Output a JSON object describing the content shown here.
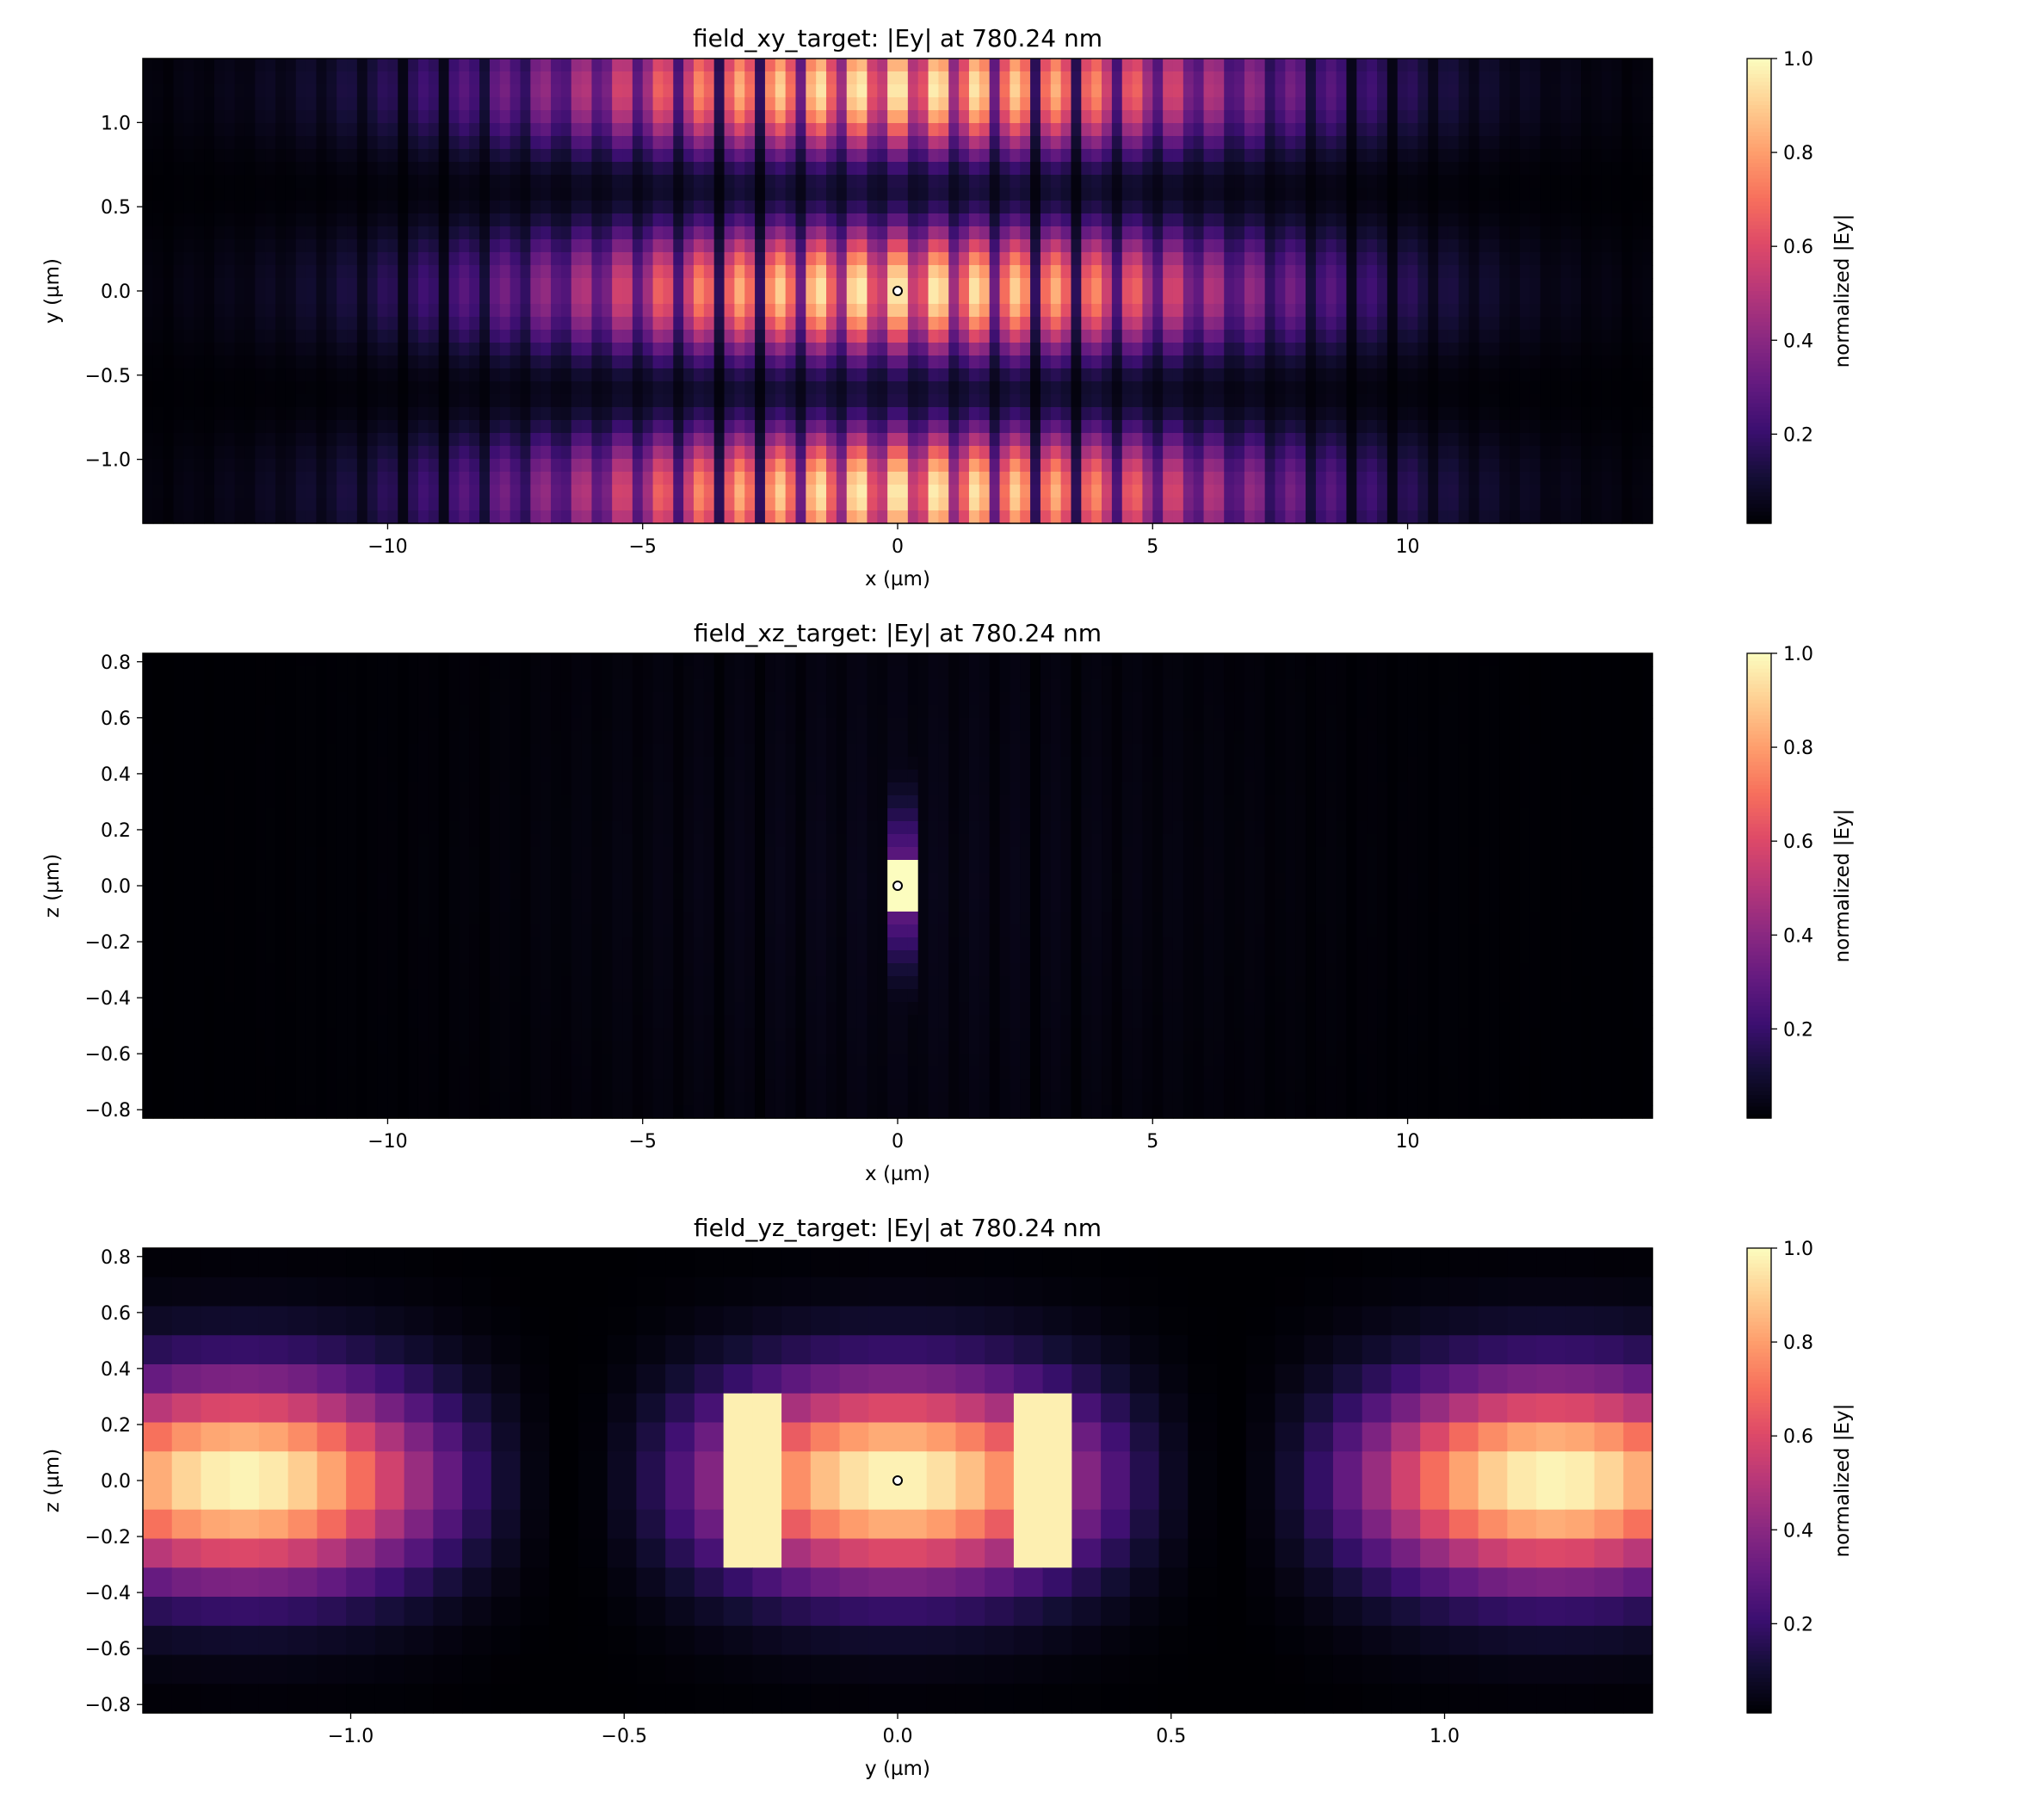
{
  "chart_data": [
    {
      "type": "heatmap",
      "title": "field_xy_target: |Ey| at 780.24 nm",
      "xlabel": "x (µm)",
      "ylabel": "y (µm)",
      "xlim": [
        -14.8,
        14.8
      ],
      "ylim": [
        -1.38,
        1.38
      ],
      "xticks": [
        -10,
        -5,
        0,
        5,
        10
      ],
      "xtick_labels": [
        "−10",
        "−5",
        "0",
        "5",
        "10"
      ],
      "yticks": [
        -1.0,
        -0.5,
        0.0,
        0.5,
        1.0
      ],
      "ytick_labels": [
        "−1.0",
        "−0.5",
        "0.0",
        "0.5",
        "1.0"
      ],
      "colorbar_label": "normalized |Ey|",
      "colorbar_range": [
        0.01,
        1.0
      ],
      "colorbar_ticks": [
        0.2,
        0.4,
        0.6,
        0.8,
        1.0
      ],
      "colorbar_tick_labels": [
        "0.2",
        "0.4",
        "0.6",
        "0.8",
        "1.0"
      ],
      "colormap": "magma",
      "marker": {
        "x": 0,
        "y": 0
      },
      "grid": false
    },
    {
      "type": "heatmap",
      "title": "field_xz_target: |Ey| at 780.24 nm",
      "xlabel": "x (µm)",
      "ylabel": "z (µm)",
      "xlim": [
        -14.8,
        14.8
      ],
      "ylim": [
        -0.83,
        0.83
      ],
      "xticks": [
        -10,
        -5,
        0,
        5,
        10
      ],
      "xtick_labels": [
        "−10",
        "−5",
        "0",
        "5",
        "10"
      ],
      "yticks": [
        -0.8,
        -0.6,
        -0.4,
        -0.2,
        0.0,
        0.2,
        0.4,
        0.6,
        0.8
      ],
      "ytick_labels": [
        "−0.8",
        "−0.6",
        "−0.4",
        "−0.2",
        "0.0",
        "0.2",
        "0.4",
        "0.6",
        "0.8"
      ],
      "colorbar_label": "normalized |Ey|",
      "colorbar_range": [
        0.01,
        1.0
      ],
      "colorbar_ticks": [
        0.2,
        0.4,
        0.6,
        0.8,
        1.0
      ],
      "colorbar_tick_labels": [
        "0.2",
        "0.4",
        "0.6",
        "0.8",
        "1.0"
      ],
      "colormap": "magma",
      "marker": {
        "x": 0,
        "y": 0
      },
      "grid": false
    },
    {
      "type": "heatmap",
      "title": "field_yz_target: |Ey| at 780.24 nm",
      "xlabel": "y (µm)",
      "ylabel": "z (µm)",
      "xlim": [
        -1.38,
        1.38
      ],
      "ylim": [
        -0.83,
        0.83
      ],
      "xticks": [
        -1.0,
        -0.5,
        0.0,
        0.5,
        1.0
      ],
      "xtick_labels": [
        "−1.0",
        "−0.5",
        "0.0",
        "0.5",
        "1.0"
      ],
      "yticks": [
        -0.8,
        -0.6,
        -0.4,
        -0.2,
        0.0,
        0.2,
        0.4,
        0.6,
        0.8
      ],
      "ytick_labels": [
        "−0.8",
        "−0.6",
        "−0.4",
        "−0.2",
        "0.0",
        "0.2",
        "0.4",
        "0.6",
        "0.8"
      ],
      "colorbar_label": "normalized |Ey|",
      "colorbar_range": [
        0.01,
        1.0
      ],
      "colorbar_ticks": [
        0.2,
        0.4,
        0.6,
        0.8,
        1.0
      ],
      "colorbar_tick_labels": [
        "0.2",
        "0.4",
        "0.6",
        "0.8",
        "1.0"
      ],
      "colormap": "magma",
      "marker": {
        "x": 0,
        "y": 0
      },
      "grid": false
    }
  ]
}
